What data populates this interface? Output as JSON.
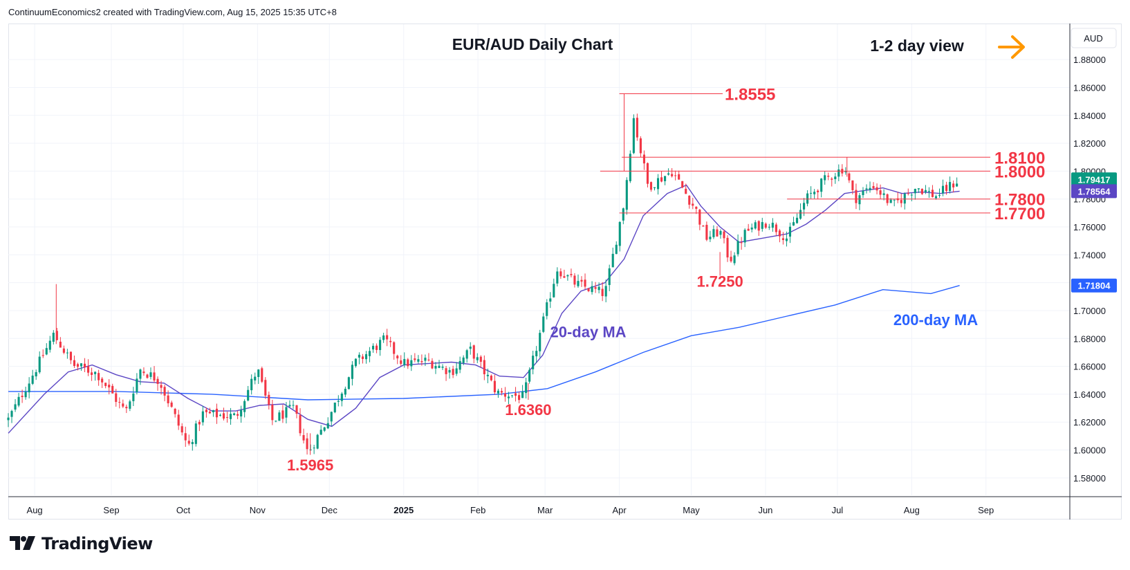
{
  "header": {
    "attribution": "ContinuumEconomics2 created with TradingView.com, Aug 15, 2025 15:35 UTC+8"
  },
  "brand": {
    "name": "TradingView"
  },
  "chart_data": {
    "type": "candlestick",
    "title": "EUR/AUD Daily Chart",
    "view_note": "1-2 day view",
    "view_arrow": "right-arrow",
    "currency_label": "AUD",
    "ylim": [
      1.57,
      1.89
    ],
    "y_ticks": [
      "1.88000",
      "1.86000",
      "1.84000",
      "1.82000",
      "1.80000",
      "1.78000",
      "1.76000",
      "1.74000",
      "1.72000",
      "1.70000",
      "1.68000",
      "1.66000",
      "1.64000",
      "1.62000",
      "1.60000",
      "1.58000"
    ],
    "x_ticks": [
      {
        "label": "Aug",
        "day": 6
      },
      {
        "label": "Sep",
        "day": 38
      },
      {
        "label": "Oct",
        "day": 68
      },
      {
        "label": "Nov",
        "day": 99
      },
      {
        "label": "Dec",
        "day": 129
      },
      {
        "label": "2025",
        "day": 160,
        "bold": true
      },
      {
        "label": "Feb",
        "day": 191
      },
      {
        "label": "Mar",
        "day": 219
      },
      {
        "label": "Apr",
        "day": 250
      },
      {
        "label": "May",
        "day": 280
      },
      {
        "label": "Jun",
        "day": 311
      },
      {
        "label": "Jul",
        "day": 341
      },
      {
        "label": "Aug",
        "day": 372
      },
      {
        "label": "Sep",
        "day": 403
      }
    ],
    "x_day_range": [
      -5,
      438
    ],
    "anchors": [
      [
        -5,
        1.622
      ],
      [
        8,
        1.663
      ],
      [
        14,
        1.683
      ],
      [
        22,
        1.661
      ],
      [
        32,
        1.655
      ],
      [
        44,
        1.627
      ],
      [
        50,
        1.658
      ],
      [
        58,
        1.65
      ],
      [
        70,
        1.602
      ],
      [
        76,
        1.626
      ],
      [
        90,
        1.624
      ],
      [
        99,
        1.658
      ],
      [
        105,
        1.621
      ],
      [
        114,
        1.63
      ],
      [
        120,
        1.598
      ],
      [
        128,
        1.621
      ],
      [
        140,
        1.663
      ],
      [
        152,
        1.679
      ],
      [
        160,
        1.662
      ],
      [
        170,
        1.664
      ],
      [
        180,
        1.656
      ],
      [
        188,
        1.672
      ],
      [
        199,
        1.641
      ],
      [
        210,
        1.638
      ],
      [
        224,
        1.73
      ],
      [
        232,
        1.719
      ],
      [
        244,
        1.712
      ],
      [
        252,
        1.778
      ],
      [
        256,
        1.838
      ],
      [
        262,
        1.789
      ],
      [
        272,
        1.8
      ],
      [
        282,
        1.772
      ],
      [
        286,
        1.752
      ],
      [
        292,
        1.757
      ],
      [
        296,
        1.736
      ],
      [
        303,
        1.757
      ],
      [
        312,
        1.764
      ],
      [
        320,
        1.752
      ],
      [
        328,
        1.78
      ],
      [
        336,
        1.794
      ],
      [
        344,
        1.803
      ],
      [
        348,
        1.78
      ],
      [
        356,
        1.79
      ],
      [
        364,
        1.775
      ],
      [
        374,
        1.789
      ],
      [
        382,
        1.782
      ],
      [
        392,
        1.7941
      ]
    ],
    "series": [
      {
        "name": "20-day MA",
        "color": "#5b46c4",
        "points": [
          [
            -5,
            1.612
          ],
          [
            10,
            1.64
          ],
          [
            20,
            1.656
          ],
          [
            30,
            1.661
          ],
          [
            40,
            1.654
          ],
          [
            50,
            1.649
          ],
          [
            60,
            1.648
          ],
          [
            70,
            1.637
          ],
          [
            80,
            1.628
          ],
          [
            90,
            1.628
          ],
          [
            100,
            1.632
          ],
          [
            110,
            1.633
          ],
          [
            120,
            1.622
          ],
          [
            130,
            1.617
          ],
          [
            140,
            1.63
          ],
          [
            150,
            1.652
          ],
          [
            160,
            1.661
          ],
          [
            170,
            1.662
          ],
          [
            180,
            1.663
          ],
          [
            190,
            1.661
          ],
          [
            200,
            1.653
          ],
          [
            210,
            1.652
          ],
          [
            218,
            1.668
          ],
          [
            226,
            1.698
          ],
          [
            234,
            1.714
          ],
          [
            244,
            1.72
          ],
          [
            252,
            1.737
          ],
          [
            260,
            1.768
          ],
          [
            270,
            1.784
          ],
          [
            278,
            1.79
          ],
          [
            284,
            1.775
          ],
          [
            292,
            1.76
          ],
          [
            300,
            1.749
          ],
          [
            310,
            1.752
          ],
          [
            320,
            1.755
          ],
          [
            328,
            1.762
          ],
          [
            336,
            1.772
          ],
          [
            344,
            1.784
          ],
          [
            352,
            1.786
          ],
          [
            360,
            1.788
          ],
          [
            368,
            1.784
          ],
          [
            376,
            1.785
          ],
          [
            384,
            1.784
          ],
          [
            392,
            1.7856
          ]
        ]
      },
      {
        "name": "200-day MA",
        "color": "#2962ff",
        "points": [
          [
            -5,
            1.642
          ],
          [
            40,
            1.642
          ],
          [
            80,
            1.64
          ],
          [
            120,
            1.636
          ],
          [
            160,
            1.637
          ],
          [
            200,
            1.64
          ],
          [
            220,
            1.644
          ],
          [
            240,
            1.656
          ],
          [
            260,
            1.67
          ],
          [
            280,
            1.682
          ],
          [
            300,
            1.688
          ],
          [
            320,
            1.696
          ],
          [
            340,
            1.704
          ],
          [
            360,
            1.715
          ],
          [
            380,
            1.7122
          ],
          [
            392,
            1.718
          ]
        ]
      }
    ],
    "last_price": {
      "value": "1.79417",
      "color": "#089981"
    },
    "ma20_value": {
      "value": "1.78564",
      "color": "#5b46c4"
    },
    "ma200_value": {
      "value": "1.71804",
      "color": "#2962ff"
    },
    "levels": [
      {
        "value": 1.8555,
        "label": "1.8555",
        "from_day": 250
      },
      {
        "value": 1.81,
        "label": "1.8100",
        "from_day": 251
      },
      {
        "value": 1.8,
        "label": "1.8000",
        "from_day": 242
      },
      {
        "value": 1.78,
        "label": "1.7800",
        "from_day": 320
      },
      {
        "value": 1.77,
        "label": "1.7700",
        "from_day": 250
      }
    ],
    "annotations": [
      {
        "text": "1.7250",
        "day": 292,
        "y": 1.717,
        "color": "#f23645"
      },
      {
        "text": "1.6360",
        "day": 212,
        "y": 1.625,
        "color": "#f23645"
      },
      {
        "text": "1.5965",
        "day": 121,
        "y": 1.5855,
        "color": "#f23645"
      },
      {
        "text": "20-day MA",
        "day": 237,
        "y": 1.681,
        "color": "#5b46c4"
      },
      {
        "text": "200-day MA",
        "day": 382,
        "y": 1.6895,
        "color": "#2962ff"
      }
    ],
    "colors": {
      "up": "#089981",
      "down": "#f23645",
      "level": "#f23645",
      "grid": "#f0f3fa",
      "axis_text": "#131722"
    }
  }
}
